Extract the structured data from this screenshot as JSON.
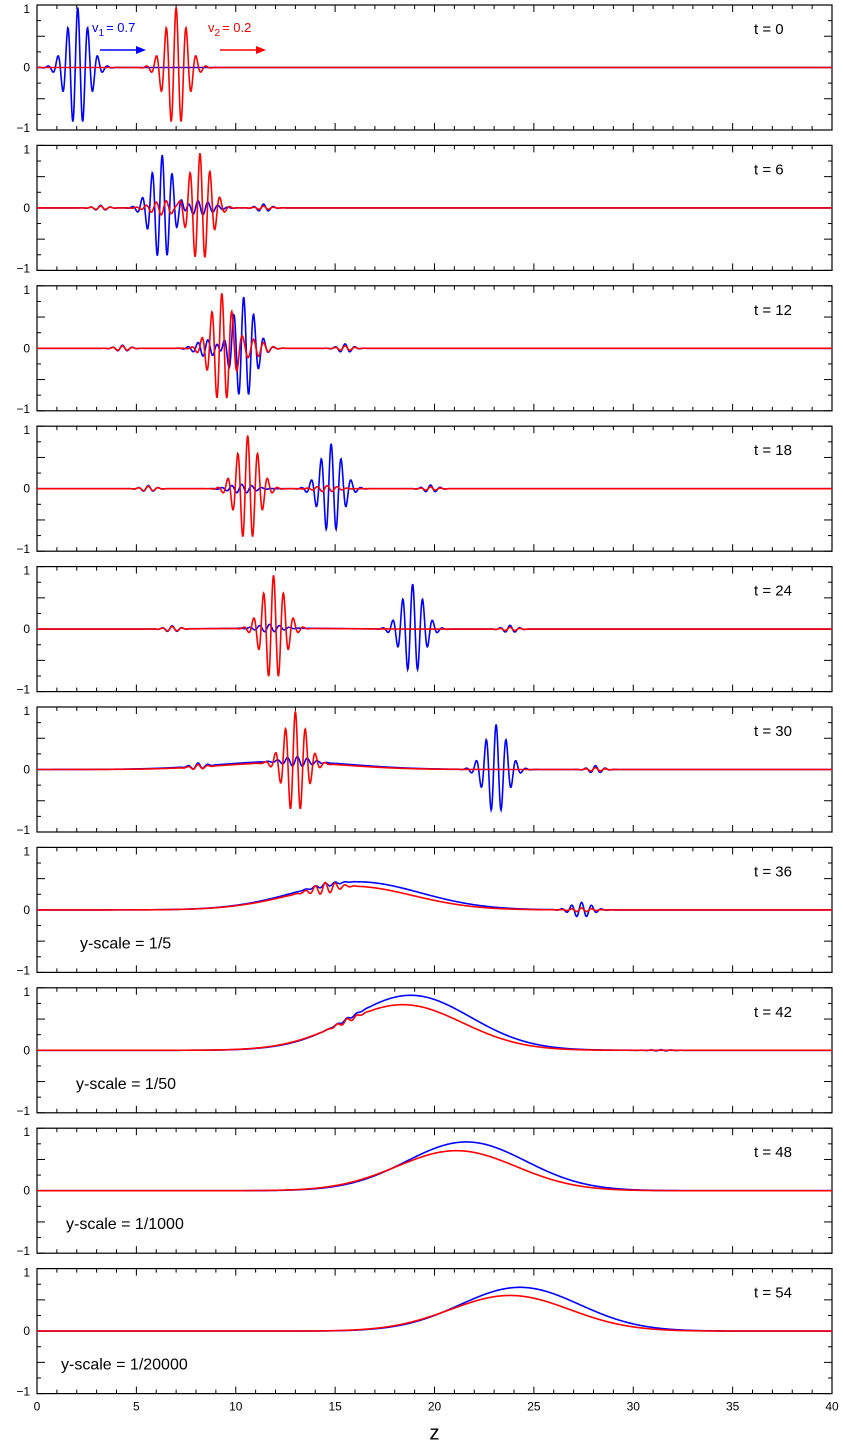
{
  "chart_data": {
    "type": "line",
    "xlabel": "z",
    "xlim": [
      0,
      40
    ],
    "x_ticks": [
      "0",
      "5",
      "10",
      "15",
      "20",
      "25",
      "30",
      "35",
      "40"
    ],
    "ylim": [
      -1,
      1
    ],
    "y_ticks": [
      "1",
      "0",
      "−1"
    ],
    "grid": false,
    "velocity_labels": [
      {
        "sub": "1",
        "value": "= 0.7",
        "color": "#0000ff",
        "prefix": "v"
      },
      {
        "sub": "2",
        "value": "= 0.2",
        "color": "#ff0000",
        "prefix": "v"
      }
    ],
    "series_colors": {
      "wave_1": "#0000ff",
      "wave_2": "#ff0000"
    },
    "panels": [
      {
        "time_label": "t = 0",
        "t": 0,
        "y_scale_label": ""
      },
      {
        "time_label": "t = 6",
        "t": 6,
        "y_scale_label": ""
      },
      {
        "time_label": "t = 12",
        "t": 12,
        "y_scale_label": ""
      },
      {
        "time_label": "t = 18",
        "t": 18,
        "y_scale_label": ""
      },
      {
        "time_label": "t = 24",
        "t": 24,
        "y_scale_label": ""
      },
      {
        "time_label": "t = 30",
        "t": 30,
        "y_scale_label": ""
      },
      {
        "time_label": "t = 36",
        "t": 36,
        "y_scale_label": "y-scale = 1/5"
      },
      {
        "time_label": "t = 42",
        "t": 42,
        "y_scale_label": "y-scale = 1/50"
      },
      {
        "time_label": "t = 48",
        "t": 48,
        "y_scale_label": "y-scale = 1/1000"
      },
      {
        "time_label": "t = 54",
        "t": 54,
        "y_scale_label": "y-scale = 1/20000"
      }
    ]
  }
}
